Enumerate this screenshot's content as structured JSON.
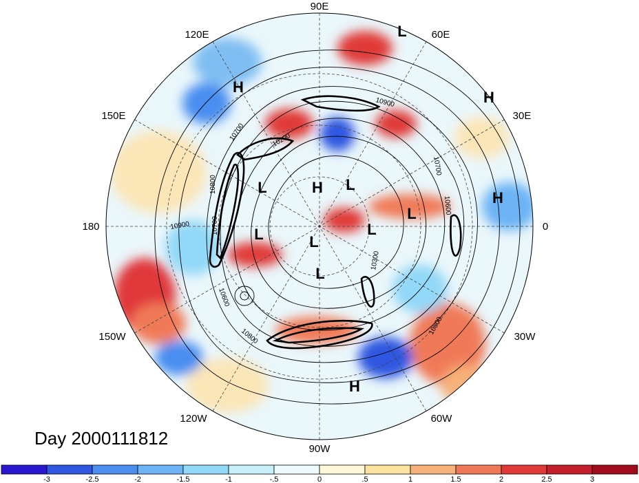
{
  "map": {
    "projection": "north polar stereographic",
    "longitude_labels": [
      "90E",
      "60E",
      "30E",
      "0",
      "30W",
      "60W",
      "90W",
      "120W",
      "150W",
      "180",
      "150E",
      "120E"
    ],
    "pressure_centers": [
      {
        "letter": "L",
        "name": "low-center-top"
      },
      {
        "letter": "H",
        "name": "high-center-upper-left"
      },
      {
        "letter": "H",
        "name": "high-center-upper-right"
      },
      {
        "letter": "H",
        "name": "high-center-right"
      },
      {
        "letter": "L",
        "name": "low-center-left"
      },
      {
        "letter": "H",
        "name": "high-center-pole"
      },
      {
        "letter": "L",
        "name": "low-center-pole-right"
      },
      {
        "letter": "L",
        "name": "low-center-europe"
      },
      {
        "letter": "L",
        "name": "low-center-atlantic"
      },
      {
        "letter": "L",
        "name": "low-center-pacific"
      },
      {
        "letter": "L",
        "name": "low-center-canada"
      },
      {
        "letter": "L",
        "name": "low-center-greenland"
      },
      {
        "letter": "H",
        "name": "high-center-subtropical"
      }
    ],
    "contour_labels": [
      "10900",
      "10700",
      "10800",
      "10700",
      "10900",
      "10600",
      "10800",
      "10700",
      "10600",
      "10300",
      "10800",
      "10200"
    ]
  },
  "title": {
    "day_label": "Day 2000111812"
  },
  "colorbar": {
    "tick_labels": [
      "-3",
      "-2.5",
      "-2",
      "-1.5",
      "-1",
      "-.5",
      "0",
      ".5",
      "1",
      "1.5",
      "2",
      "2.5",
      "3"
    ],
    "colors": [
      "#2a18d0",
      "#2f56e0",
      "#4a8ef0",
      "#6cb4f5",
      "#92d8f8",
      "#c8f0fb",
      "#eefbfd",
      "#fff8d8",
      "#fde3a0",
      "#f7b17a",
      "#f07a58",
      "#e03a38",
      "#c41e2a",
      "#a00c1e"
    ]
  }
}
